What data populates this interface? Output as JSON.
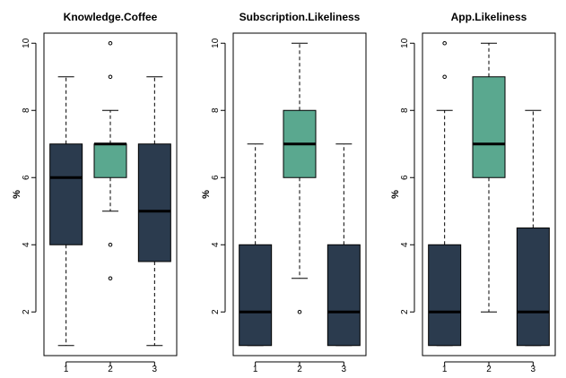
{
  "colors": {
    "dark": "#2b3b4e",
    "teal": "#5aa88f",
    "axis": "#000000"
  },
  "chart_data": [
    {
      "type": "boxplot",
      "title": "Knowledge.Coffee",
      "ylabel": "%",
      "ylim": [
        0.7,
        10.3
      ],
      "yticks": [
        "2",
        "4",
        "6",
        "8",
        "10"
      ],
      "categories": [
        "1",
        "2",
        "3"
      ],
      "boxes": [
        {
          "category": "1",
          "whisker_low": 1,
          "q1": 4,
          "median": 6,
          "q3": 7,
          "whisker_high": 9,
          "outliers": [],
          "color": "#2b3b4e"
        },
        {
          "category": "2",
          "whisker_low": 5,
          "q1": 6,
          "median": 7,
          "q3": 7,
          "whisker_high": 8,
          "outliers": [
            3,
            4,
            9,
            10
          ],
          "color": "#5aa88f"
        },
        {
          "category": "3",
          "whisker_low": 1,
          "q1": 3.5,
          "median": 5,
          "q3": 7,
          "whisker_high": 9,
          "outliers": [],
          "color": "#2b3b4e"
        }
      ]
    },
    {
      "type": "boxplot",
      "title": "Subscription.Likeliness",
      "ylabel": "%",
      "ylim": [
        0.7,
        10.3
      ],
      "yticks": [
        "2",
        "4",
        "6",
        "8",
        "10"
      ],
      "categories": [
        "1",
        "2",
        "3"
      ],
      "boxes": [
        {
          "category": "1",
          "whisker_low": 1,
          "q1": 1,
          "median": 2,
          "q3": 4,
          "whisker_high": 7,
          "outliers": [],
          "color": "#2b3b4e"
        },
        {
          "category": "2",
          "whisker_low": 3,
          "q1": 6,
          "median": 7,
          "q3": 8,
          "whisker_high": 10,
          "outliers": [
            2
          ],
          "color": "#5aa88f"
        },
        {
          "category": "3",
          "whisker_low": 1,
          "q1": 1,
          "median": 2,
          "q3": 4,
          "whisker_high": 7,
          "outliers": [],
          "color": "#2b3b4e"
        }
      ]
    },
    {
      "type": "boxplot",
      "title": "App.Likeliness",
      "ylabel": "%",
      "ylim": [
        0.7,
        10.3
      ],
      "yticks": [
        "2",
        "4",
        "6",
        "8",
        "10"
      ],
      "categories": [
        "1",
        "2",
        "3"
      ],
      "boxes": [
        {
          "category": "1",
          "whisker_low": 1,
          "q1": 1,
          "median": 2,
          "q3": 4,
          "whisker_high": 8,
          "outliers": [
            9,
            10
          ],
          "color": "#2b3b4e"
        },
        {
          "category": "2",
          "whisker_low": 2,
          "q1": 6,
          "median": 7,
          "q3": 9,
          "whisker_high": 10,
          "outliers": [],
          "color": "#5aa88f"
        },
        {
          "category": "3",
          "whisker_low": 1,
          "q1": 1,
          "median": 2,
          "q3": 4.5,
          "whisker_high": 8,
          "outliers": [],
          "color": "#2b3b4e"
        }
      ]
    }
  ]
}
